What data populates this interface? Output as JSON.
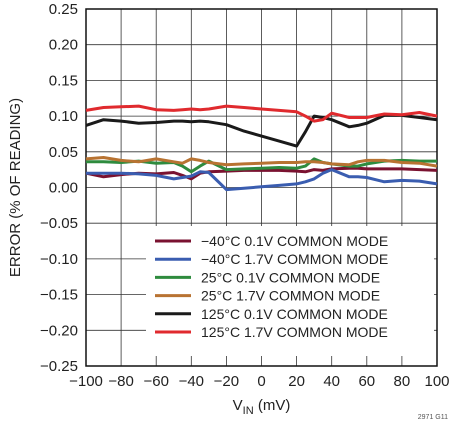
{
  "chart_data": {
    "type": "line",
    "xlabel_main": "V",
    "xlabel_sub": "IN",
    "xlabel_unit": " (mV)",
    "ylabel": "ERROR (% OF READING)",
    "xlim": [
      -100,
      100
    ],
    "ylim": [
      -0.25,
      0.25
    ],
    "x_ticks": [
      -100,
      -80,
      -60,
      -40,
      -20,
      0,
      20,
      40,
      60,
      80,
      100
    ],
    "x_tick_labels": [
      "−100",
      "−80",
      "−60",
      "−40",
      "−20",
      "0",
      "20",
      "40",
      "60",
      "80",
      "100"
    ],
    "y_ticks": [
      -0.25,
      -0.2,
      -0.15,
      -0.1,
      -0.05,
      0,
      0.05,
      0.1,
      0.15,
      0.2,
      0.25
    ],
    "y_tick_labels": [
      "−0.25",
      "−0.20",
      "−0.15",
      "−0.10",
      "−0.05",
      "0.00",
      "0.05",
      "0.10",
      "0.15",
      "0.20",
      "0.25"
    ],
    "grid": true,
    "legend_position": "bottom-right",
    "x": [
      -100,
      -90,
      -80,
      -70,
      -60,
      -50,
      -45,
      -40,
      -35,
      -30,
      -20,
      -10,
      0,
      10,
      20,
      25,
      30,
      35,
      40,
      50,
      55,
      60,
      70,
      80,
      90,
      100
    ],
    "series": [
      {
        "name": "−40°C 0.1V COMMON MODE",
        "color": "#7a1230",
        "values": [
          0.02,
          0.015,
          0.018,
          0.02,
          0.019,
          0.021,
          0.017,
          0.012,
          0.02,
          0.022,
          0.023,
          0.024,
          0.024,
          0.024,
          0.023,
          0.022,
          0.025,
          0.024,
          0.026,
          0.027,
          0.027,
          0.026,
          0.026,
          0.026,
          0.025,
          0.024
        ]
      },
      {
        "name": "−40°C 1.7V COMMON MODE",
        "color": "#3a5db0",
        "values": [
          0.02,
          0.02,
          0.02,
          0.019,
          0.017,
          0.012,
          0.014,
          0.016,
          0.022,
          0.021,
          -0.003,
          -0.001,
          0.001,
          0.003,
          0.005,
          0.008,
          0.012,
          0.02,
          0.025,
          0.015,
          0.015,
          0.014,
          0.008,
          0.01,
          0.009,
          0.005
        ]
      },
      {
        "name": "25°C 0.1V COMMON MODE",
        "color": "#2e8b3e",
        "values": [
          0.036,
          0.036,
          0.035,
          0.037,
          0.034,
          0.035,
          0.03,
          0.022,
          0.03,
          0.037,
          0.025,
          0.026,
          0.027,
          0.028,
          0.027,
          0.03,
          0.04,
          0.035,
          0.033,
          0.03,
          0.03,
          0.033,
          0.037,
          0.038,
          0.037,
          0.037
        ]
      },
      {
        "name": "25°C 1.7V COMMON MODE",
        "color": "#b87332",
        "values": [
          0.04,
          0.042,
          0.038,
          0.036,
          0.04,
          0.036,
          0.034,
          0.04,
          0.038,
          0.035,
          0.032,
          0.033,
          0.034,
          0.035,
          0.035,
          0.036,
          0.036,
          0.035,
          0.033,
          0.032,
          0.036,
          0.038,
          0.038,
          0.035,
          0.034,
          0.03
        ]
      },
      {
        "name": "125°C 0.1V COMMON MODE",
        "color": "#1a1a1a",
        "values": [
          0.087,
          0.095,
          0.093,
          0.09,
          0.091,
          0.093,
          0.093,
          0.092,
          0.093,
          0.092,
          0.088,
          0.079,
          0.072,
          0.065,
          0.058,
          0.078,
          0.1,
          0.098,
          0.095,
          0.085,
          0.087,
          0.09,
          0.101,
          0.101,
          0.098,
          0.095
        ]
      },
      {
        "name": "125°C 1.7V COMMON MODE",
        "color": "#e02a2e",
        "values": [
          0.108,
          0.112,
          0.113,
          0.114,
          0.109,
          0.108,
          0.109,
          0.11,
          0.109,
          0.11,
          0.114,
          0.112,
          0.11,
          0.108,
          0.106,
          0.1,
          0.093,
          0.095,
          0.104,
          0.098,
          0.098,
          0.098,
          0.103,
          0.102,
          0.105,
          0.1
        ]
      }
    ]
  },
  "figure_id": "2971 G11"
}
